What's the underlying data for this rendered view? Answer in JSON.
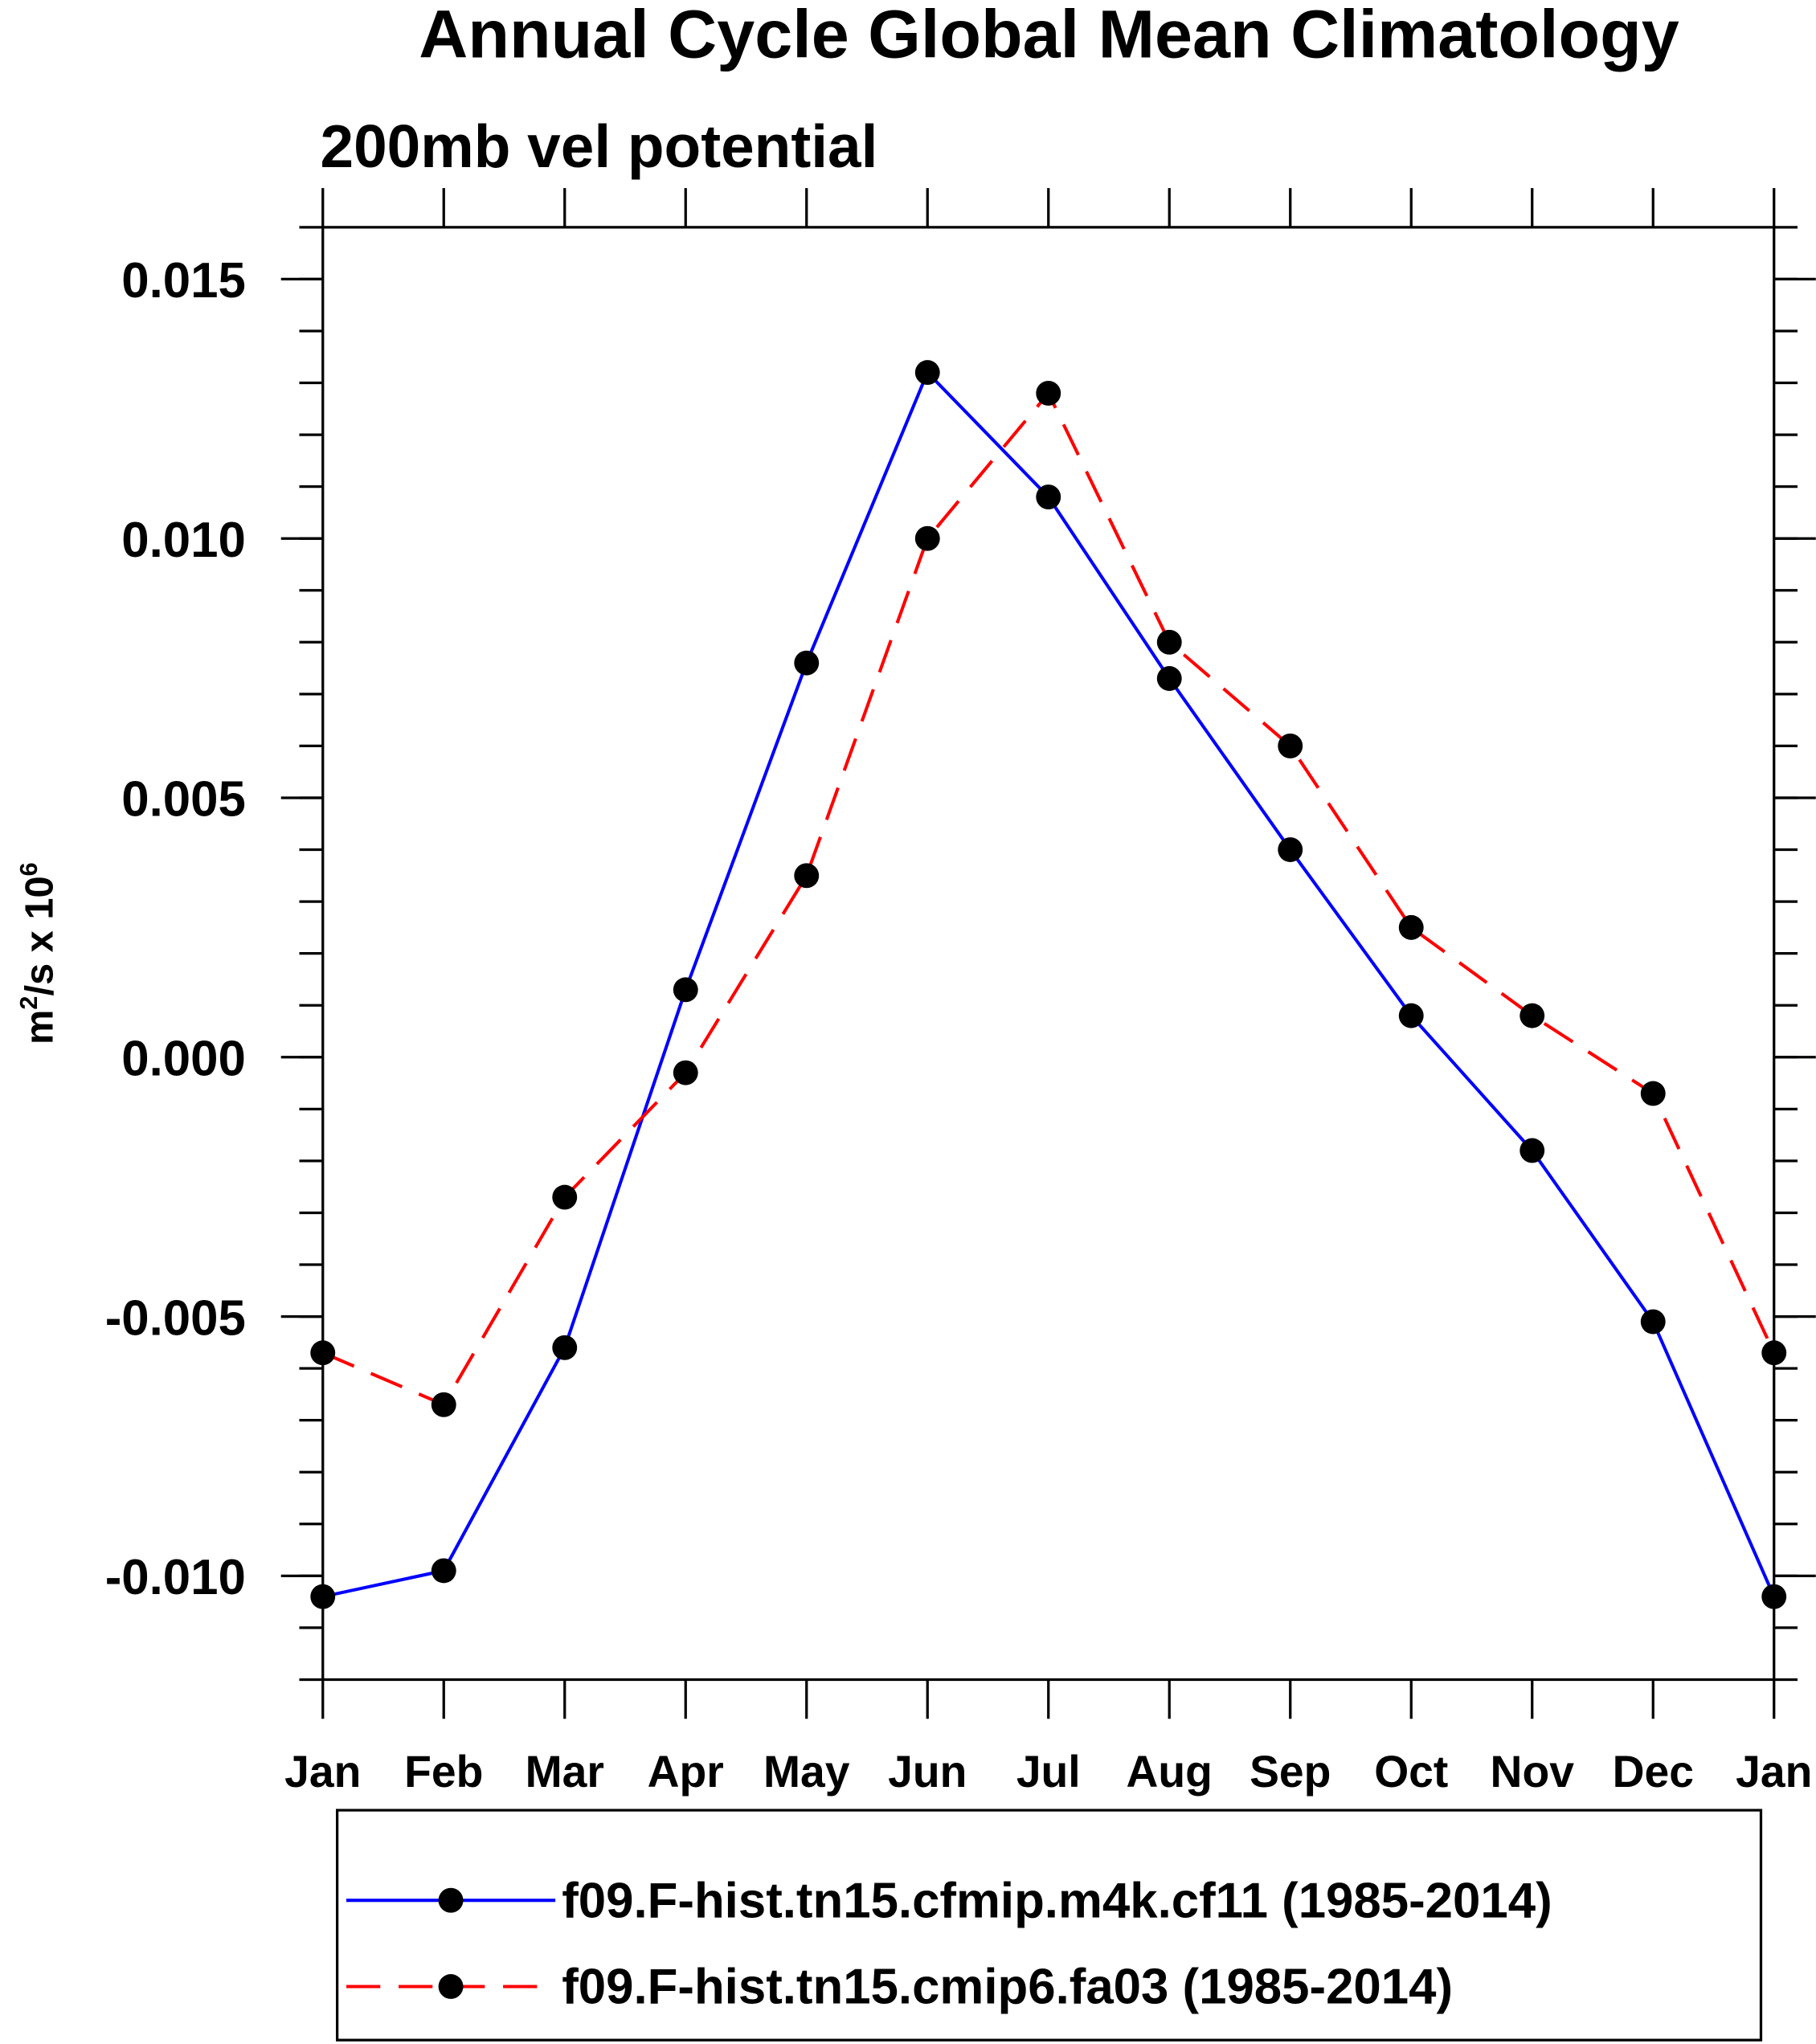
{
  "chart_data": {
    "type": "line",
    "title": "Annual Cycle Global Mean Climatology",
    "subtitle": "200mb vel potential",
    "ylabel_base": "m",
    "ylabel_sup1": "2",
    "ylabel_mid": "/s x 10",
    "ylabel_sup2": "6",
    "xlabel": "",
    "categories": [
      "Jan",
      "Feb",
      "Mar",
      "Apr",
      "May",
      "Jun",
      "Jul",
      "Aug",
      "Sep",
      "Oct",
      "Nov",
      "Dec",
      "Jan"
    ],
    "ylim": [
      -0.012,
      0.016
    ],
    "yticks": [
      -0.01,
      -0.005,
      0.0,
      0.005,
      0.01,
      0.015
    ],
    "ytick_labels": [
      "-0.010",
      "-0.005",
      "0.000",
      "0.005",
      "0.010",
      "0.015"
    ],
    "minor_ytick_step": 0.001,
    "grid": false,
    "legend_position": "bottom",
    "series": [
      {
        "name": "f09.F-hist.tn15.cfmip.m4k.cf11 (1985-2014)",
        "color": "#0000ff",
        "dash": "solid",
        "marker": "filled-circle",
        "values": [
          -0.0104,
          -0.0099,
          -0.0056,
          0.0013,
          0.0076,
          0.0132,
          0.0108,
          0.0073,
          0.004,
          0.0008,
          -0.0018,
          -0.0051,
          -0.0104
        ]
      },
      {
        "name": "f09.F-hist.tn15.cmip6.fa03 (1985-2014)",
        "color": "#ff0000",
        "dash": "dashed",
        "marker": "filled-circle",
        "values": [
          -0.0057,
          -0.0067,
          -0.0027,
          -0.0003,
          0.0035,
          0.01,
          0.0128,
          0.008,
          0.006,
          0.0025,
          0.0008,
          -0.0007,
          -0.0057
        ]
      }
    ]
  }
}
